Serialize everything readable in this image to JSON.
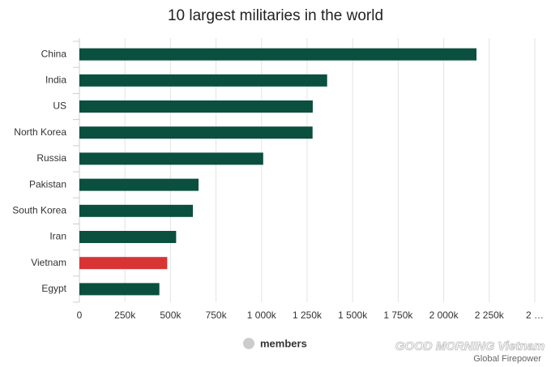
{
  "chart_data": {
    "type": "hbar",
    "title": "10 largest militaries in the world",
    "categories": [
      "China",
      "India",
      "US",
      "North Korea",
      "Russia",
      "Pakistan",
      "South Korea",
      "Iran",
      "Vietnam",
      "Egypt"
    ],
    "series": [
      {
        "name": "members",
        "color": "#0b4f3f",
        "values": [
          2180000,
          1360000,
          1281000,
          1280000,
          1009000,
          654000,
          623000,
          531000,
          482000,
          439000
        ],
        "colors": [
          "#0b4f3f",
          "#0b4f3f",
          "#0b4f3f",
          "#0b4f3f",
          "#0b4f3f",
          "#0b4f3f",
          "#0b4f3f",
          "#0b4f3f",
          "#d83434",
          "#0b4f3f"
        ]
      }
    ],
    "legend_color": "#cccccc",
    "xlim": [
      0,
      2500000
    ],
    "xticks": [
      0,
      {
        "value": 250000,
        "label": "250k"
      },
      {
        "value": 500000,
        "label": "500k"
      },
      {
        "value": 750000,
        "label": "750k"
      },
      {
        "value": 1000000,
        "label": "1 000k"
      },
      {
        "value": 1250000,
        "label": "1 250k"
      },
      {
        "value": 1500000,
        "label": "1 500k"
      },
      {
        "value": 1750000,
        "label": "1 750k"
      },
      {
        "value": 2000000,
        "label": "2 000k"
      },
      {
        "value": 2250000,
        "label": "2 250k"
      },
      {
        "value": 2500000,
        "label": "2 …"
      }
    ],
    "grid": true,
    "credit": "Global Firepower",
    "watermark": "GOOD MORNING Vietnam"
  }
}
